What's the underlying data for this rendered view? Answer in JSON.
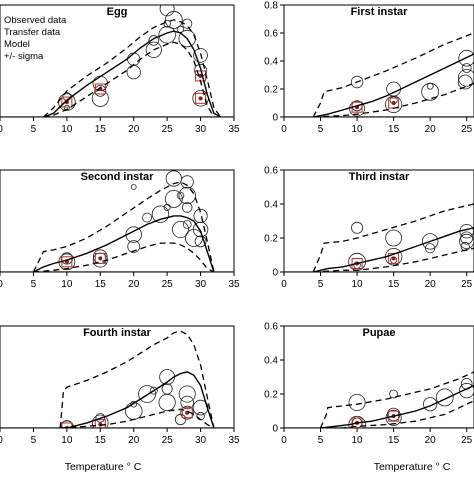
{
  "legend": {
    "items": [
      "Observed data",
      "Transfer data",
      "Model",
      "+/- sigma"
    ]
  },
  "chart_data": [
    {
      "type": "line",
      "title": "Egg",
      "xlim": [
        0,
        35
      ],
      "ylim": [
        0,
        0.6
      ],
      "x_ticks": [
        "0",
        "5",
        "10",
        "15",
        "20",
        "25",
        "30",
        "35"
      ],
      "y_ticks": [],
      "series": [
        {
          "role": "model",
          "style": "solid",
          "x": [
            6.5,
            8,
            10,
            13,
            16,
            19,
            21,
            23,
            25,
            26,
            27,
            28,
            29,
            30,
            31,
            32,
            33
          ],
          "y": [
            0,
            0.02,
            0.09,
            0.17,
            0.24,
            0.31,
            0.37,
            0.42,
            0.45,
            0.46,
            0.45,
            0.42,
            0.36,
            0.26,
            0.12,
            0.02,
            0
          ]
        },
        {
          "role": "sigma_upper",
          "style": "dashed",
          "x": [
            6.5,
            8,
            10,
            13,
            16,
            19,
            21,
            23,
            25,
            26,
            27,
            28,
            29,
            30,
            31,
            32,
            33
          ],
          "y": [
            0,
            0.05,
            0.14,
            0.22,
            0.29,
            0.37,
            0.43,
            0.48,
            0.51,
            0.52,
            0.51,
            0.49,
            0.44,
            0.34,
            0.2,
            0.05,
            0
          ]
        },
        {
          "role": "sigma_lower",
          "style": "dashed",
          "x": [
            6.5,
            8,
            10,
            13,
            16,
            19,
            21,
            23,
            25,
            26,
            27,
            28,
            29,
            30,
            31,
            32,
            33
          ],
          "y": [
            0,
            0.01,
            0.04,
            0.11,
            0.18,
            0.25,
            0.31,
            0.36,
            0.39,
            0.4,
            0.39,
            0.36,
            0.3,
            0.19,
            0.06,
            0,
            0
          ]
        }
      ],
      "observed": [
        [
          10,
          0.05
        ],
        [
          10,
          0.08
        ],
        [
          10,
          0.11
        ],
        [
          15,
          0.1
        ],
        [
          15,
          0.14
        ],
        [
          15,
          0.18
        ],
        [
          20,
          0.24
        ],
        [
          20,
          0.31
        ],
        [
          23,
          0.36
        ],
        [
          23,
          0.41
        ],
        [
          25,
          0.44
        ],
        [
          25,
          0.5
        ],
        [
          26,
          0.52
        ],
        [
          27,
          0.47
        ],
        [
          28,
          0.42
        ],
        [
          28,
          0.5
        ],
        [
          30,
          0.1
        ],
        [
          30,
          0.25
        ],
        [
          30,
          0.33
        ],
        [
          25,
          0.58
        ]
      ],
      "transfer": [
        [
          10,
          0.08
        ],
        [
          15,
          0.15
        ],
        [
          30,
          0.1
        ],
        [
          30,
          0.22
        ]
      ]
    },
    {
      "type": "line",
      "title": "First instar",
      "xlim": [
        0,
        26
      ],
      "ylim": [
        0,
        0.8
      ],
      "x_ticks": [
        "0",
        "5",
        "10",
        "15",
        "20",
        "25"
      ],
      "y_ticks": [
        "0",
        "0.2",
        "0.4",
        "0.6",
        "0.8"
      ],
      "series": [
        {
          "role": "model",
          "style": "solid",
          "x": [
            4,
            6,
            8,
            10,
            12,
            14,
            16,
            18,
            20,
            22,
            24,
            26
          ],
          "y": [
            0,
            0.02,
            0.05,
            0.08,
            0.11,
            0.15,
            0.2,
            0.25,
            0.3,
            0.35,
            0.4,
            0.45
          ]
        },
        {
          "role": "sigma_upper",
          "style": "dashed",
          "x": [
            4,
            5,
            5.5,
            8,
            10,
            14,
            18,
            22,
            26
          ],
          "y": [
            0,
            0.1,
            0.18,
            0.21,
            0.25,
            0.33,
            0.42,
            0.52,
            0.6
          ]
        },
        {
          "role": "sigma_lower",
          "style": "dashed",
          "x": [
            4,
            8,
            10,
            14,
            18,
            22,
            26
          ],
          "y": [
            0,
            0.01,
            0.02,
            0.05,
            0.1,
            0.16,
            0.24
          ]
        }
      ],
      "observed": [
        [
          10,
          0.06
        ],
        [
          10,
          0.08
        ],
        [
          15,
          0.09
        ],
        [
          15,
          0.12
        ],
        [
          20,
          0.18
        ],
        [
          20,
          0.22
        ],
        [
          25,
          0.28
        ],
        [
          25,
          0.35
        ],
        [
          25,
          0.42
        ],
        [
          10,
          0.25
        ],
        [
          15,
          0.2
        ],
        [
          24.8,
          0.25
        ]
      ],
      "transfer": [
        [
          10,
          0.07
        ],
        [
          15,
          0.1
        ]
      ]
    },
    {
      "type": "line",
      "title": "Second instar",
      "xlim": [
        0,
        35
      ],
      "ylim": [
        0,
        0.6
      ],
      "x_ticks": [
        "0",
        "5",
        "10",
        "15",
        "20",
        "25",
        "30",
        "35"
      ],
      "y_ticks": [],
      "series": [
        {
          "role": "model",
          "style": "solid",
          "x": [
            5,
            6.5,
            8,
            10,
            13,
            16,
            19,
            22,
            24,
            26,
            27,
            28,
            29,
            30,
            31,
            32
          ],
          "y": [
            0,
            0.03,
            0.05,
            0.07,
            0.11,
            0.16,
            0.22,
            0.28,
            0.31,
            0.33,
            0.33,
            0.32,
            0.3,
            0.24,
            0.12,
            0
          ]
        },
        {
          "role": "sigma_upper",
          "style": "dashed",
          "x": [
            5,
            6.5,
            8,
            10,
            13,
            16,
            19,
            22,
            24,
            26,
            27,
            28,
            29,
            30,
            31,
            32
          ],
          "y": [
            0,
            0.12,
            0.13,
            0.15,
            0.2,
            0.27,
            0.35,
            0.43,
            0.48,
            0.52,
            0.53,
            0.51,
            0.46,
            0.35,
            0.18,
            0
          ]
        },
        {
          "role": "sigma_lower",
          "style": "dashed",
          "x": [
            5,
            8,
            10,
            13,
            16,
            19,
            22,
            24,
            26,
            27,
            28,
            29,
            30,
            31,
            32
          ],
          "y": [
            0,
            0.01,
            0.02,
            0.04,
            0.07,
            0.11,
            0.15,
            0.17,
            0.17,
            0.16,
            0.14,
            0.11,
            0.07,
            0.02,
            0
          ]
        }
      ],
      "observed": [
        [
          10,
          0.06
        ],
        [
          10,
          0.08
        ],
        [
          15,
          0.07
        ],
        [
          15,
          0.09
        ],
        [
          20,
          0.15
        ],
        [
          20,
          0.22
        ],
        [
          22,
          0.32
        ],
        [
          24,
          0.34
        ],
        [
          25,
          0.38
        ],
        [
          26,
          0.43
        ],
        [
          27,
          0.45
        ],
        [
          28,
          0.45
        ],
        [
          28,
          0.38
        ],
        [
          26,
          0.55
        ],
        [
          28,
          0.53
        ],
        [
          30,
          0.33
        ],
        [
          30,
          0.25
        ],
        [
          30,
          0.18
        ],
        [
          27,
          0.25
        ],
        [
          28,
          0.28
        ],
        [
          29,
          0.2
        ],
        [
          20,
          0.5
        ]
      ],
      "transfer": [
        [
          10,
          0.06
        ],
        [
          15,
          0.08
        ]
      ]
    },
    {
      "type": "line",
      "title": "Third instar",
      "xlim": [
        0,
        26
      ],
      "ylim": [
        0,
        0.6
      ],
      "x_ticks": [
        "0",
        "5",
        "10",
        "15",
        "20",
        "25"
      ],
      "y_ticks": [
        "0",
        "0.2",
        "0.4",
        "0.6"
      ],
      "series": [
        {
          "role": "model",
          "style": "solid",
          "x": [
            4,
            6,
            8,
            10,
            12,
            14,
            16,
            18,
            20,
            22,
            24,
            26
          ],
          "y": [
            0,
            0.02,
            0.03,
            0.05,
            0.07,
            0.09,
            0.12,
            0.15,
            0.18,
            0.21,
            0.24,
            0.26
          ]
        },
        {
          "role": "sigma_upper",
          "style": "dashed",
          "x": [
            4,
            5,
            5.5,
            8,
            10,
            14,
            18,
            20,
            22,
            24,
            26
          ],
          "y": [
            0,
            0.1,
            0.17,
            0.18,
            0.2,
            0.25,
            0.3,
            0.33,
            0.36,
            0.38,
            0.4
          ]
        },
        {
          "role": "sigma_lower",
          "style": "dashed",
          "x": [
            4,
            8,
            10,
            14,
            18,
            22,
            26
          ],
          "y": [
            0,
            0.01,
            0.01,
            0.03,
            0.06,
            0.1,
            0.14
          ]
        }
      ],
      "observed": [
        [
          10,
          0.04
        ],
        [
          10,
          0.06
        ],
        [
          15,
          0.07
        ],
        [
          15,
          0.09
        ],
        [
          20,
          0.14
        ],
        [
          20,
          0.18
        ],
        [
          25,
          0.2
        ],
        [
          25,
          0.24
        ],
        [
          25,
          0.18
        ],
        [
          10,
          0.26
        ],
        [
          15,
          0.2
        ],
        [
          24.8,
          0.15
        ]
      ],
      "transfer": [
        [
          10,
          0.05
        ],
        [
          15,
          0.08
        ]
      ]
    },
    {
      "type": "line",
      "title": "Fourth instar",
      "xlim": [
        0,
        35
      ],
      "ylim": [
        0,
        0.6
      ],
      "x_ticks": [
        "0",
        "5",
        "10",
        "15",
        "20",
        "25",
        "30",
        "35"
      ],
      "y_ticks": [],
      "series": [
        {
          "role": "model",
          "style": "solid",
          "x": [
            9,
            10,
            13,
            16,
            19,
            21,
            23,
            25,
            26,
            27,
            28,
            29,
            30,
            31,
            32
          ],
          "y": [
            0,
            0,
            0.03,
            0.07,
            0.12,
            0.17,
            0.22,
            0.27,
            0.3,
            0.32,
            0.33,
            0.31,
            0.25,
            0.12,
            0
          ]
        },
        {
          "role": "sigma_upper",
          "style": "dashed",
          "x": [
            9,
            9.5,
            10,
            13,
            16,
            19,
            21,
            23,
            25,
            26,
            27,
            28,
            29,
            30,
            31,
            32
          ],
          "y": [
            0,
            0.22,
            0.24,
            0.28,
            0.33,
            0.39,
            0.44,
            0.49,
            0.53,
            0.56,
            0.57,
            0.55,
            0.49,
            0.37,
            0.18,
            0
          ]
        },
        {
          "role": "sigma_lower",
          "style": "dashed",
          "x": [
            9,
            13,
            16,
            19,
            21,
            23,
            25,
            27,
            28,
            29,
            30,
            31,
            32
          ],
          "y": [
            0,
            0.01,
            0.02,
            0.04,
            0.06,
            0.08,
            0.1,
            0.11,
            0.1,
            0.08,
            0.05,
            0.02,
            0
          ]
        }
      ],
      "observed": [
        [
          10,
          0
        ],
        [
          10,
          0.01
        ],
        [
          15,
          0.03
        ],
        [
          15,
          0.06
        ],
        [
          20,
          0.1
        ],
        [
          20,
          0.14
        ],
        [
          22,
          0.2
        ],
        [
          23,
          0.22
        ],
        [
          25,
          0.15
        ],
        [
          25,
          0.23
        ],
        [
          25,
          0.3
        ],
        [
          28,
          0.15
        ],
        [
          28,
          0.09
        ],
        [
          30,
          0.12
        ],
        [
          27,
          0.05
        ],
        [
          28,
          0.2
        ],
        [
          30,
          0.07
        ]
      ],
      "transfer": [
        [
          10,
          0
        ],
        [
          15,
          0.02
        ],
        [
          28,
          0.09
        ]
      ]
    },
    {
      "type": "line",
      "title": "Pupae",
      "xlim": [
        0,
        26
      ],
      "ylim": [
        0,
        0.6
      ],
      "x_ticks": [
        "0",
        "5",
        "10",
        "15",
        "20",
        "25"
      ],
      "y_ticks": [
        "0",
        "0.2",
        "0.4",
        "0.6"
      ],
      "series": [
        {
          "role": "model",
          "style": "solid",
          "x": [
            5,
            7,
            9,
            10,
            12,
            14,
            16,
            18,
            20,
            22,
            24,
            26
          ],
          "y": [
            0,
            0.01,
            0.02,
            0.03,
            0.04,
            0.06,
            0.08,
            0.1,
            0.13,
            0.17,
            0.21,
            0.25
          ]
        },
        {
          "role": "sigma_upper",
          "style": "dashed",
          "x": [
            5,
            5.8,
            6,
            8,
            10,
            14,
            18,
            20,
            22,
            24,
            26
          ],
          "y": [
            0,
            0.08,
            0.12,
            0.13,
            0.14,
            0.17,
            0.21,
            0.23,
            0.26,
            0.29,
            0.33
          ]
        },
        {
          "role": "sigma_lower",
          "style": "dashed",
          "x": [
            5,
            8,
            10,
            14,
            18,
            20,
            22,
            24,
            26
          ],
          "y": [
            0,
            0,
            0.01,
            0.02,
            0.04,
            0.06,
            0.08,
            0.12,
            0.16
          ]
        }
      ],
      "observed": [
        [
          10,
          0.02
        ],
        [
          10,
          0.03
        ],
        [
          15,
          0.06
        ],
        [
          15,
          0.08
        ],
        [
          20,
          0.14
        ],
        [
          25,
          0.22
        ],
        [
          25,
          0.26
        ],
        [
          10,
          0.15
        ],
        [
          15,
          0.2
        ],
        [
          22,
          0.18
        ]
      ],
      "transfer": [
        [
          10,
          0.03
        ],
        [
          15,
          0.07
        ]
      ]
    }
  ],
  "x_axis_label": "Temperature ° C"
}
